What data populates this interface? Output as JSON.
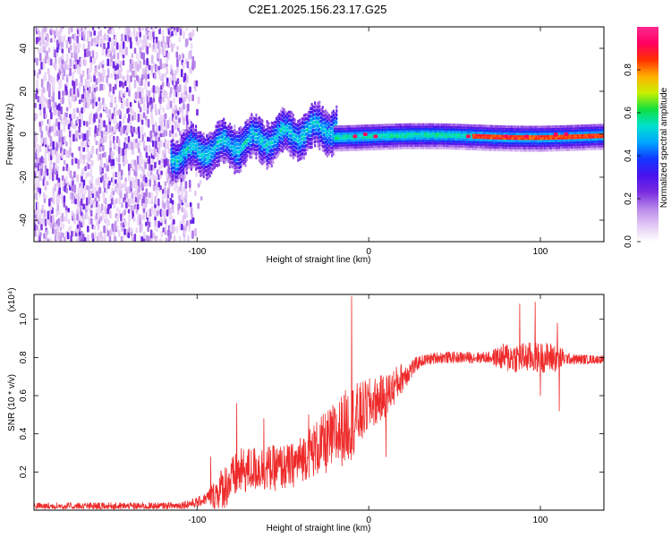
{
  "title": "C2E1.2025.156.23.17.G25",
  "chart_data": [
    {
      "type": "heatmap",
      "name": "spectrogram",
      "xlabel": "Height of straight line (km)",
      "ylabel": "Frequency (Hz)",
      "xlim": [
        -195,
        137
      ],
      "ylim": [
        -50,
        50
      ],
      "xticks": [
        -100,
        0,
        100
      ],
      "xtick_labels": [
        "-100",
        "0",
        "100"
      ],
      "yticks": [
        -40,
        -20,
        0,
        20,
        40
      ],
      "ytick_labels": [
        "-40",
        "-20",
        "0",
        "20",
        "40"
      ],
      "colorbar": {
        "label": "Normalized spectral amplitude",
        "range": [
          0,
          1
        ],
        "ticks": [
          0.0,
          0.2,
          0.4,
          0.6,
          0.8
        ],
        "tick_labels": [
          "0.0",
          "0.2",
          "0.4",
          "0.6",
          "0.8"
        ],
        "colors": [
          "#ffffff",
          "#e3c8f4",
          "#b888ea",
          "#7a2be0",
          "#4a12ee",
          "#1236ff",
          "#00a6ff",
          "#00e0d0",
          "#10e040",
          "#c8f000",
          "#ffb000",
          "#ff3000",
          "#ff0060",
          "#ff2890"
        ]
      },
      "regions": [
        {
          "x_range": [
            -195,
            -105
          ],
          "freq_range": [
            -50,
            50
          ],
          "amplitude": "0.05-0.25",
          "description": "broadband noise"
        },
        {
          "x_range": [
            -115,
            -20
          ],
          "freq_center": [
            -10,
            8
          ],
          "amplitude": "0.2-0.5",
          "description": "rising band"
        },
        {
          "x_range": [
            -20,
            137
          ],
          "freq_center": [
            0,
            0
          ],
          "amplitude": "0.3-1.0",
          "description": "narrow band near 0 Hz"
        }
      ]
    },
    {
      "type": "line",
      "name": "snr",
      "xlabel": "Height of straight line (km)",
      "ylabel": "SNR (10 * v/v)",
      "y_multiplier": "(x10⁴)",
      "xlim": [
        -195,
        137
      ],
      "ylim": [
        0,
        1.13
      ],
      "xticks": [
        -100,
        0,
        100
      ],
      "xtick_labels": [
        "-100",
        "0",
        "100"
      ],
      "yticks": [
        0.2,
        0.4,
        0.6,
        0.8,
        1.0
      ],
      "ytick_labels": [
        "0.2",
        "0.4",
        "0.6",
        "0.8",
        "1.0"
      ],
      "series": [
        {
          "name": "SNR",
          "color": "#ee2a2a",
          "envelope": {
            "x": [
              -195,
              -120,
              -110,
              -100,
              -90,
              -82,
              -75,
              -65,
              -55,
              -45,
              -35,
              -25,
              -18,
              -12,
              -5,
              0,
              10,
              20,
              30,
              40,
              50,
              60,
              70,
              80,
              85,
              95,
              105,
              110,
              120,
              137
            ],
            "y": [
              0.02,
              0.02,
              0.025,
              0.04,
              0.08,
              0.14,
              0.2,
              0.22,
              0.22,
              0.23,
              0.3,
              0.35,
              0.4,
              0.45,
              0.5,
              0.55,
              0.6,
              0.7,
              0.78,
              0.8,
              0.8,
              0.8,
              0.8,
              0.8,
              0.8,
              0.8,
              0.8,
              0.8,
              0.79,
              0.79
            ]
          },
          "noise": {
            "x": [
              -195,
              -110,
              -95,
              -85,
              -40,
              -20,
              -10,
              0,
              15,
              30,
              70,
              80,
              110,
              115,
              137
            ],
            "y": [
              0.02,
              0.02,
              0.03,
              0.12,
              0.12,
              0.18,
              0.2,
              0.14,
              0.1,
              0.03,
              0.03,
              0.08,
              0.08,
              0.03,
              0.02
            ]
          },
          "spikes": [
            {
              "x": -92,
              "y": 0.28
            },
            {
              "x": -77,
              "y": 0.56
            },
            {
              "x": -61,
              "y": 0.48
            },
            {
              "x": -35,
              "y": 0.5
            },
            {
              "x": -10,
              "y": 1.12
            },
            {
              "x": 10,
              "y": 0.28
            },
            {
              "x": 88,
              "y": 1.08
            },
            {
              "x": 97,
              "y": 1.09
            },
            {
              "x": 100,
              "y": 0.6
            },
            {
              "x": 110,
              "y": 0.98
            },
            {
              "x": 111,
              "y": 0.52
            }
          ]
        }
      ]
    }
  ]
}
